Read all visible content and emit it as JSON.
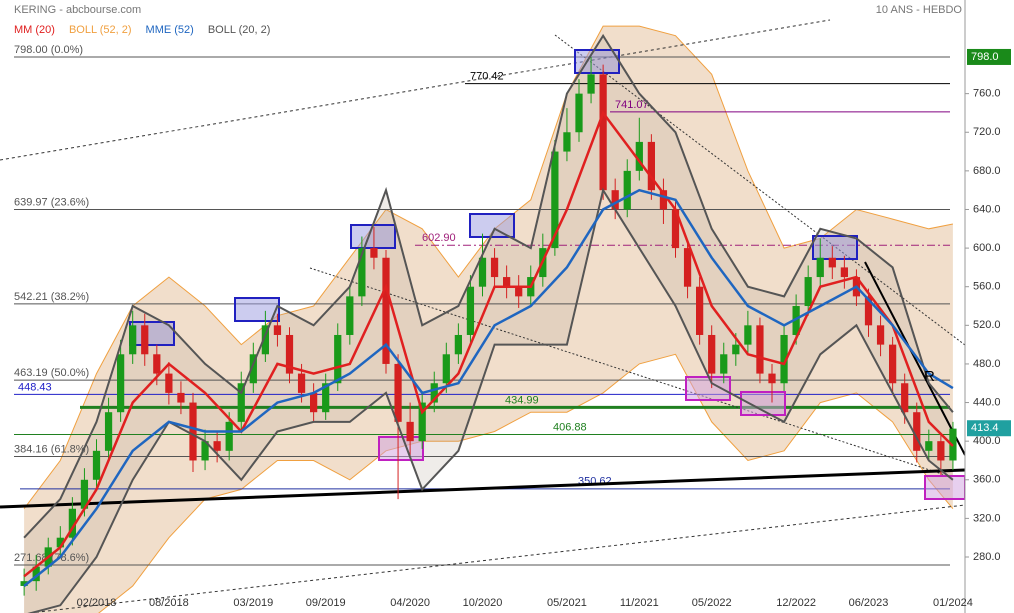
{
  "chart_data": {
    "type": "candlestick",
    "title": "KERING - abcbourse.com",
    "subtitle": "10 ANS - HEBDO",
    "x": [
      "08/2017",
      "09/2017",
      "10/2017",
      "11/2017",
      "12/2017",
      "01/2018",
      "02/2018",
      "03/2018",
      "04/2018",
      "05/2018",
      "06/2018",
      "07/2018",
      "08/2018",
      "09/2018",
      "10/2018",
      "11/2018",
      "12/2018",
      "01/2019",
      "02/2019",
      "03/2019",
      "04/2019",
      "05/2019",
      "06/2019",
      "07/2019",
      "08/2019",
      "09/2019",
      "10/2019",
      "11/2019",
      "12/2019",
      "01/2020",
      "02/2020",
      "03/2020",
      "04/2020",
      "05/2020",
      "06/2020",
      "07/2020",
      "08/2020",
      "09/2020",
      "10/2020",
      "11/2020",
      "12/2020",
      "01/2021",
      "02/2021",
      "03/2021",
      "04/2021",
      "05/2021",
      "06/2021",
      "07/2021",
      "08/2021",
      "09/2021",
      "10/2021",
      "11/2021",
      "12/2021",
      "01/2022",
      "02/2022",
      "03/2022",
      "04/2022",
      "05/2022",
      "06/2022",
      "07/2022",
      "08/2022",
      "09/2022",
      "10/2022",
      "11/2022",
      "12/2022",
      "01/2023",
      "02/2023",
      "03/2023",
      "04/2023",
      "05/2023",
      "06/2023",
      "07/2023",
      "08/2023",
      "09/2023",
      "10/2023",
      "11/2023",
      "12/2023",
      "01/2024"
    ],
    "open": [
      250,
      255,
      270,
      290,
      300,
      330,
      360,
      390,
      430,
      490,
      520,
      490,
      470,
      450,
      440,
      380,
      400,
      390,
      420,
      460,
      490,
      520,
      510,
      470,
      450,
      430,
      460,
      510,
      550,
      600,
      590,
      480,
      420,
      400,
      440,
      460,
      490,
      510,
      560,
      590,
      570,
      560,
      550,
      570,
      600,
      700,
      720,
      760,
      780,
      660,
      640,
      680,
      710,
      660,
      640,
      600,
      560,
      510,
      470,
      490,
      500,
      520,
      470,
      460,
      510,
      540,
      570,
      590,
      580,
      570,
      550,
      520,
      500,
      460,
      430,
      390,
      400,
      380
    ],
    "high": [
      268,
      282,
      300,
      312,
      342,
      372,
      402,
      445,
      505,
      535,
      532,
      500,
      482,
      462,
      450,
      412,
      410,
      430,
      472,
      502,
      535,
      532,
      518,
      480,
      460,
      470,
      522,
      562,
      612,
      622,
      598,
      490,
      440,
      452,
      472,
      502,
      522,
      572,
      615,
      600,
      582,
      572,
      582,
      615,
      712,
      745,
      775,
      798,
      790,
      672,
      692,
      735,
      718,
      672,
      648,
      608,
      570,
      520,
      502,
      512,
      535,
      528,
      480,
      520,
      552,
      582,
      610,
      602,
      592,
      578,
      558,
      530,
      508,
      470,
      440,
      412,
      408,
      420
    ],
    "low": [
      240,
      245,
      262,
      280,
      292,
      322,
      350,
      382,
      420,
      480,
      478,
      458,
      438,
      428,
      368,
      370,
      378,
      380,
      410,
      450,
      482,
      498,
      460,
      440,
      420,
      422,
      452,
      500,
      540,
      578,
      470,
      340,
      385,
      392,
      430,
      450,
      480,
      500,
      550,
      560,
      548,
      538,
      540,
      560,
      592,
      690,
      710,
      750,
      650,
      630,
      632,
      670,
      650,
      625,
      590,
      548,
      500,
      455,
      460,
      478,
      490,
      460,
      440,
      452,
      500,
      530,
      560,
      568,
      558,
      540,
      508,
      488,
      448,
      418,
      378,
      380,
      365,
      370
    ],
    "close": [
      255,
      270,
      290,
      300,
      330,
      360,
      390,
      430,
      490,
      520,
      490,
      470,
      450,
      440,
      380,
      400,
      390,
      420,
      460,
      490,
      520,
      510,
      470,
      450,
      430,
      460,
      510,
      550,
      600,
      590,
      480,
      420,
      400,
      440,
      460,
      490,
      510,
      560,
      590,
      570,
      560,
      550,
      570,
      600,
      700,
      720,
      760,
      780,
      660,
      640,
      680,
      710,
      660,
      640,
      600,
      560,
      510,
      470,
      490,
      500,
      520,
      470,
      460,
      510,
      540,
      570,
      590,
      580,
      570,
      550,
      520,
      500,
      460,
      430,
      390,
      400,
      380,
      413
    ],
    "up_color": "#1a9a1a",
    "down_color": "#d42020",
    "series": [
      {
        "name": "MM (20)",
        "color": "#e02020",
        "x": [
          "08/2017",
          "11/2017",
          "02/2018",
          "05/2018",
          "08/2018",
          "11/2018",
          "02/2019",
          "05/2019",
          "08/2019",
          "11/2019",
          "02/2020",
          "05/2020",
          "08/2020",
          "11/2020",
          "02/2021",
          "05/2021",
          "08/2021",
          "11/2021",
          "02/2022",
          "05/2022",
          "08/2022",
          "11/2022",
          "02/2023",
          "05/2023",
          "08/2023",
          "11/2023",
          "01/2024"
        ],
        "values": [
          260,
          290,
          350,
          440,
          480,
          450,
          410,
          480,
          470,
          480,
          560,
          430,
          470,
          560,
          560,
          640,
          740,
          690,
          640,
          540,
          490,
          480,
          560,
          570,
          520,
          420,
          395
        ]
      },
      {
        "name": "BOLL (52, 2)",
        "color": "#f0a040",
        "x": [
          "08/2017",
          "11/2017",
          "02/2018",
          "05/2018",
          "08/2018",
          "11/2018",
          "02/2019",
          "05/2019",
          "08/2019",
          "11/2019",
          "02/2020",
          "05/2020",
          "08/2020",
          "11/2020",
          "02/2021",
          "05/2021",
          "08/2021",
          "11/2021",
          "02/2022",
          "05/2022",
          "08/2022",
          "11/2022",
          "02/2023",
          "05/2023",
          "08/2023",
          "11/2023",
          "01/2024"
        ],
        "upper": [
          330,
          380,
          470,
          540,
          570,
          540,
          500,
          530,
          540,
          590,
          640,
          620,
          570,
          620,
          650,
          760,
          830,
          830,
          820,
          780,
          680,
          600,
          610,
          640,
          630,
          620,
          625
        ],
        "lower": [
          200,
          210,
          220,
          250,
          300,
          340,
          350,
          380,
          380,
          360,
          390,
          400,
          400,
          410,
          430,
          430,
          450,
          480,
          490,
          420,
          380,
          390,
          440,
          450,
          420,
          360,
          330
        ]
      },
      {
        "name": "MME (52)",
        "color": "#1f66c0",
        "x": [
          "08/2017",
          "11/2017",
          "02/2018",
          "05/2018",
          "08/2018",
          "11/2018",
          "02/2019",
          "05/2019",
          "08/2019",
          "11/2019",
          "02/2020",
          "05/2020",
          "08/2020",
          "11/2020",
          "02/2021",
          "05/2021",
          "08/2021",
          "11/2021",
          "02/2022",
          "05/2022",
          "08/2022",
          "11/2022",
          "02/2023",
          "05/2023",
          "08/2023",
          "11/2023",
          "01/2024"
        ],
        "values": [
          250,
          280,
          330,
          390,
          420,
          410,
          410,
          440,
          450,
          470,
          500,
          450,
          460,
          520,
          540,
          580,
          640,
          660,
          650,
          590,
          540,
          520,
          540,
          560,
          520,
          470,
          455
        ]
      },
      {
        "name": "BOLL (20, 2)",
        "color": "#555555",
        "x": [
          "08/2017",
          "11/2017",
          "02/2018",
          "05/2018",
          "08/2018",
          "11/2018",
          "02/2019",
          "05/2019",
          "08/2019",
          "11/2019",
          "02/2020",
          "05/2020",
          "08/2020",
          "11/2020",
          "02/2021",
          "05/2021",
          "08/2021",
          "11/2021",
          "02/2022",
          "05/2022",
          "08/2022",
          "11/2022",
          "02/2023",
          "05/2023",
          "08/2023",
          "11/2023",
          "01/2024"
        ],
        "upper": [
          300,
          340,
          420,
          540,
          520,
          480,
          450,
          540,
          520,
          560,
          660,
          520,
          540,
          620,
          600,
          760,
          820,
          760,
          720,
          620,
          560,
          550,
          620,
          610,
          580,
          460,
          430
        ],
        "lower": [
          220,
          230,
          280,
          360,
          420,
          400,
          360,
          410,
          420,
          420,
          450,
          350,
          390,
          500,
          500,
          500,
          660,
          600,
          540,
          460,
          440,
          420,
          490,
          520,
          450,
          380,
          360
        ]
      }
    ],
    "xlim": [
      "06/2017",
      "02/2024"
    ],
    "xticks": [
      "02/2018",
      "08/2018",
      "03/2019",
      "09/2019",
      "04/2020",
      "10/2020",
      "05/2021",
      "11/2021",
      "05/2022",
      "12/2022",
      "06/2023",
      "01/2024"
    ],
    "ylim": [
      222,
      857
    ],
    "yticks": [
      {
        "value": 280,
        "label": "280.0"
      },
      {
        "value": 320,
        "label": "320.0"
      },
      {
        "value": 360,
        "label": "360.0"
      },
      {
        "value": 400,
        "label": "400.0"
      },
      {
        "value": 440,
        "label": "440.0"
      },
      {
        "value": 480,
        "label": "480.0"
      },
      {
        "value": 520,
        "label": "520.0"
      },
      {
        "value": 560,
        "label": "560.0"
      },
      {
        "value": 600,
        "label": "600.0"
      },
      {
        "value": 640,
        "label": "640.0"
      },
      {
        "value": 680,
        "label": "680.0"
      },
      {
        "value": 720,
        "label": "720.0"
      },
      {
        "value": 760,
        "label": "760.0"
      }
    ],
    "grid": false,
    "levels": [
      {
        "value": 798,
        "label": "798.00 (0.0%)",
        "color": "#555555"
      },
      {
        "value": 639.97,
        "label": "639.97 (23.6%)",
        "color": "#555555"
      },
      {
        "value": 542.21,
        "label": "542.21 (38.2%)",
        "color": "#555555"
      },
      {
        "value": 463.19,
        "label": "463.19 (50.0%)",
        "color": "#555555"
      },
      {
        "value": 384.16,
        "label": "384.16 (61.8%)",
        "color": "#555555"
      },
      {
        "value": 271.68,
        "label": "271.68 (78.6%)",
        "color": "#555555"
      },
      {
        "value": 448.43,
        "label": "448.43",
        "color": "#2020c8"
      },
      {
        "value": 770.42,
        "label": "770.42",
        "color": "#000000"
      },
      {
        "value": 741.07,
        "label": "741.07",
        "color": "#800080"
      },
      {
        "value": 602.9,
        "label": "602.90",
        "color": "#a0207a"
      },
      {
        "value": 434.99,
        "label": "434.99",
        "color": "#208020"
      },
      {
        "value": 406.88,
        "label": "406.88",
        "color": "#208020"
      },
      {
        "value": 350.62,
        "label": "350.62",
        "color": "#2030a0"
      }
    ],
    "price_markers": [
      {
        "value": 798,
        "label": "798.0",
        "color": "#1a8a1a"
      },
      {
        "value": 413.4,
        "label": "413.4",
        "color": "#20a0a0"
      }
    ],
    "annotations": [
      "R"
    ]
  }
}
